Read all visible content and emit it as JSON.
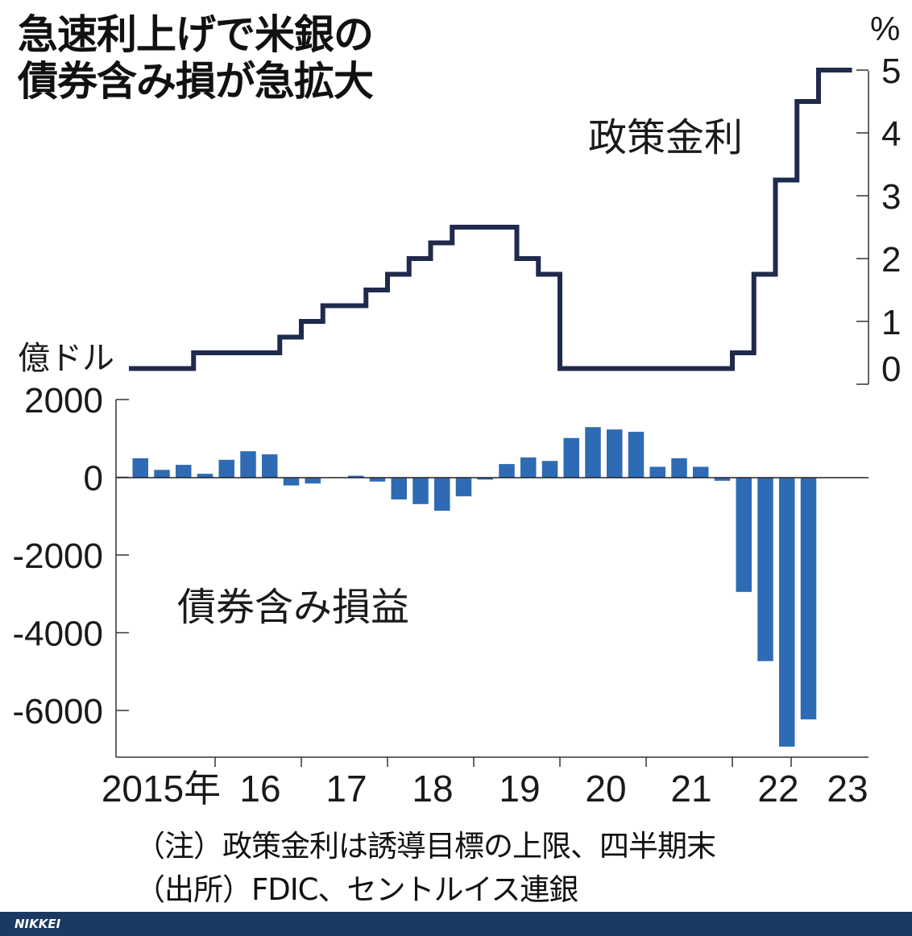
{
  "title_line1": "急速利上げで米銀の",
  "title_line2": "債券含み損が急拡大",
  "policy_label": "政策金利",
  "losses_label": "債券含み損益",
  "left_unit": "億ドル",
  "right_unit": "%",
  "note_line1": "（注）政策金利は誘導目標の上限、四半期末",
  "note_line2": "（出所）FDIC、セントルイス連銀",
  "logo": "NIKKEI",
  "colors": {
    "bar": "#2e6bb4",
    "line": "#1f2a4c",
    "footer": "#1a3a63"
  },
  "chart_data": [
    {
      "type": "line",
      "name": "政策金利",
      "axis": "right",
      "ylim": [
        0,
        5
      ],
      "yticks": [
        "0",
        "1",
        "2",
        "3",
        "4",
        "5"
      ],
      "x": [
        "2015Q1",
        "2015Q2",
        "2015Q3",
        "2015Q4",
        "2016Q1",
        "2016Q2",
        "2016Q3",
        "2016Q4",
        "2017Q1",
        "2017Q2",
        "2017Q3",
        "2017Q4",
        "2018Q1",
        "2018Q2",
        "2018Q3",
        "2018Q4",
        "2019Q1",
        "2019Q2",
        "2019Q3",
        "2019Q4",
        "2020Q1",
        "2020Q2",
        "2020Q3",
        "2020Q4",
        "2021Q1",
        "2021Q2",
        "2021Q3",
        "2021Q4",
        "2022Q1",
        "2022Q2",
        "2022Q3",
        "2022Q4",
        "2023Q1",
        "2023Q2"
      ],
      "values": [
        0.25,
        0.25,
        0.25,
        0.5,
        0.5,
        0.5,
        0.5,
        0.75,
        1.0,
        1.25,
        1.25,
        1.5,
        1.75,
        2.0,
        2.25,
        2.5,
        2.5,
        2.5,
        2.0,
        1.75,
        0.25,
        0.25,
        0.25,
        0.25,
        0.25,
        0.25,
        0.25,
        0.25,
        0.5,
        1.75,
        3.25,
        4.5,
        5.0,
        5.0
      ]
    },
    {
      "type": "bar",
      "name": "債券含み損益",
      "axis": "left",
      "ylim": [
        -7000,
        2000
      ],
      "yticks": [
        "2000",
        "0",
        "-2000",
        "-4000",
        "-6000"
      ],
      "x": [
        "2015Q1",
        "2015Q2",
        "2015Q3",
        "2015Q4",
        "2016Q1",
        "2016Q2",
        "2016Q3",
        "2016Q4",
        "2017Q1",
        "2017Q2",
        "2017Q3",
        "2017Q4",
        "2018Q1",
        "2018Q2",
        "2018Q3",
        "2018Q4",
        "2019Q1",
        "2019Q2",
        "2019Q3",
        "2019Q4",
        "2020Q1",
        "2020Q2",
        "2020Q3",
        "2020Q4",
        "2021Q1",
        "2021Q2",
        "2021Q3",
        "2021Q4",
        "2022Q1",
        "2022Q2",
        "2022Q3",
        "2022Q4",
        "2023Q1"
      ],
      "values": [
        500,
        200,
        330,
        100,
        460,
        680,
        600,
        -200,
        -150,
        0,
        50,
        -100,
        -560,
        -680,
        -850,
        -480,
        -50,
        350,
        520,
        430,
        1020,
        1300,
        1240,
        1180,
        280,
        500,
        280,
        -80,
        -2940,
        -4720,
        -6920,
        -6220,
        0
      ]
    }
  ],
  "x_tick_labels": [
    "2015年",
    "16",
    "17",
    "18",
    "19",
    "20",
    "21",
    "22",
    "23"
  ]
}
